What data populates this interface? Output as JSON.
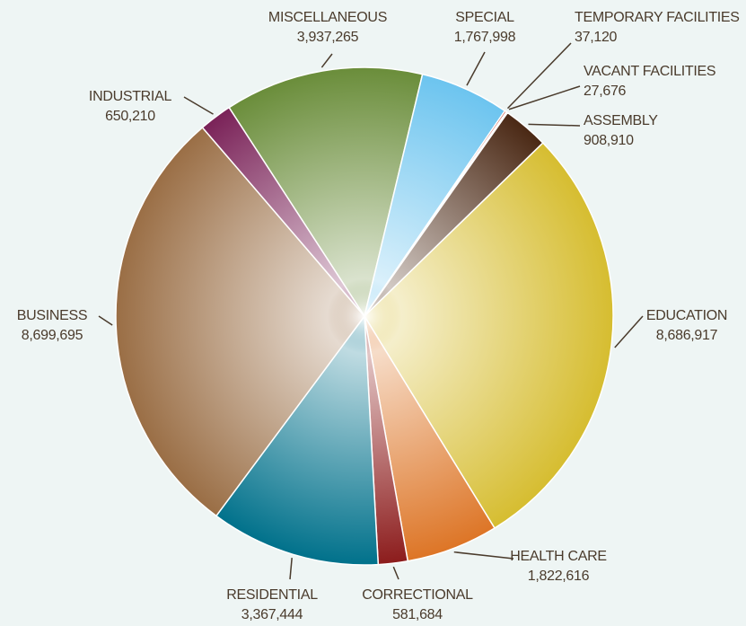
{
  "chart_data": {
    "type": "pie",
    "categories": [
      "MISCELLANEOUS",
      "SPECIAL",
      "TEMPORARY FACILITIES",
      "VACANT FACILITIES",
      "ASSEMBLY",
      "EDUCATION",
      "HEALTH CARE",
      "CORRECTIONAL",
      "RESIDENTIAL",
      "BUSINESS",
      "INDUSTRIAL"
    ],
    "values": [
      3937265,
      1767998,
      37120,
      27676,
      908910,
      8686917,
      1822616,
      581684,
      3367444,
      8699695,
      650210
    ],
    "value_labels": [
      "3,937,265",
      "1,767,998",
      "37,120",
      "27,676",
      "908,910",
      "8,686,917",
      "1,822,616",
      "581,684",
      "3,367,444",
      "8,699,695",
      "650,210"
    ],
    "colors": [
      "#6a8d3a",
      "#6cc4ef",
      "#c0392b",
      "#7a9a3a",
      "#4a2814",
      "#d6bd30",
      "#dd7526",
      "#8c1c1c",
      "#00718b",
      "#9a6e45",
      "#7a2258"
    ]
  }
}
